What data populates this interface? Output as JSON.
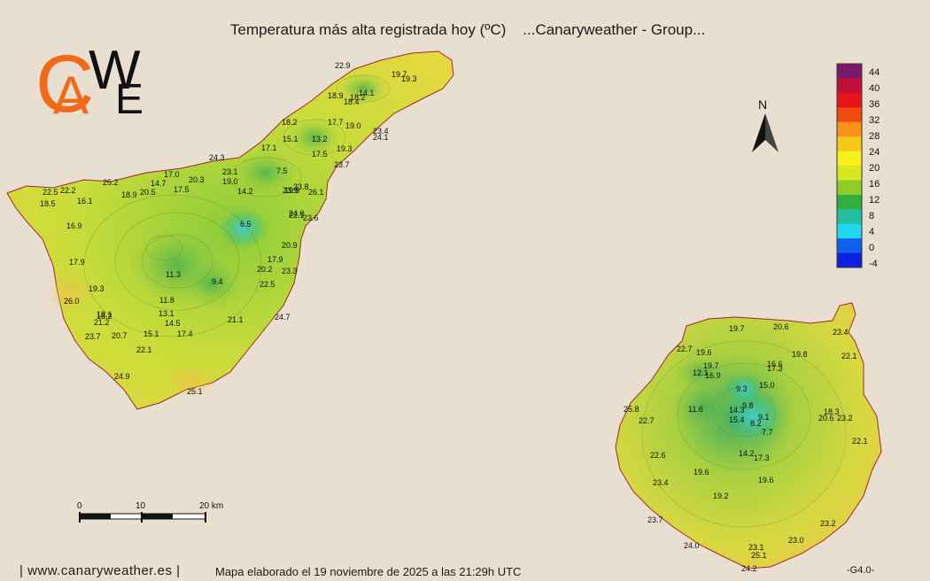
{
  "title": "Temperatura más alta registrada hoy (ºC)    ...Canaryweather - Group...",
  "footer": {
    "site": "| www.canaryweather.es |",
    "caption": "Mapa elaborado el 19 noviembre de 2025 a las 21:29h UTC",
    "version": "-G4.0-"
  },
  "logo": {
    "letters": [
      "C",
      "A",
      "W",
      "E"
    ]
  },
  "north": {
    "label": "N"
  },
  "legend": {
    "ticks": [
      "44",
      "40",
      "36",
      "32",
      "28",
      "24",
      "20",
      "16",
      "12",
      "8",
      "4",
      "0",
      "-4"
    ],
    "colors": [
      "#7a1a6a",
      "#c0103a",
      "#e8141a",
      "#f04a10",
      "#f8901a",
      "#f8c818",
      "#f8f018",
      "#d8e820",
      "#90cc28",
      "#30b040",
      "#20c0a0",
      "#20d8f0",
      "#1060f0",
      "#1020e0"
    ]
  },
  "scale": {
    "labels": [
      "0",
      "10",
      "20 km"
    ]
  },
  "chart_data": {
    "type": "map",
    "variable": "Temperatura más alta registrada hoy (ºC)",
    "tenerife": [
      "22.9",
      "19.7",
      "19.3",
      "18.9",
      "18.2",
      "18.4",
      "14.1",
      "18.2",
      "17.7",
      "19.0",
      "23.4",
      "24.1",
      "15.1",
      "13.2",
      "17.1",
      "17.5",
      "19.3",
      "23.7",
      "24.3",
      "23.1",
      "19.0",
      "7.5",
      "17.0",
      "20.3",
      "14.7",
      "25.2",
      "18.9",
      "20.5",
      "17.5",
      "14.2",
      "23.8",
      "23.9",
      "19.9",
      "26.1",
      "22.5",
      "22.2",
      "16.1",
      "18.5",
      "24.0",
      "22.1",
      "23.6",
      "16.9",
      "6.5",
      "20.9",
      "17.9",
      "20.2",
      "17.9",
      "23.3",
      "11.3",
      "9.4",
      "22.5",
      "19.3",
      "26.0",
      "11.8",
      "13.1",
      "18.2",
      "18.1",
      "21.2",
      "14.5",
      "21.1",
      "24.7",
      "23.7",
      "20.7",
      "15.1",
      "17.4",
      "22.1",
      "24.9",
      "25.1"
    ],
    "gran_canaria": [
      "19.7",
      "20.6",
      "23.4",
      "22.7",
      "19.6",
      "19.8",
      "22.1",
      "19.7",
      "16.6",
      "12.1",
      "16.9",
      "17.3",
      "9.3",
      "15.0",
      "25.8",
      "11.6",
      "14.3",
      "9.8",
      "9.1",
      "18.3",
      "22.7",
      "15.4",
      "8.2",
      "20.6",
      "23.2",
      "7.7",
      "22.1",
      "22.6",
      "14.2",
      "17.3",
      "19.6",
      "19.6",
      "23.4",
      "19.2",
      "23.7",
      "23.2",
      "24.0",
      "23.0",
      "23.1",
      "25.1",
      "24.2"
    ]
  }
}
